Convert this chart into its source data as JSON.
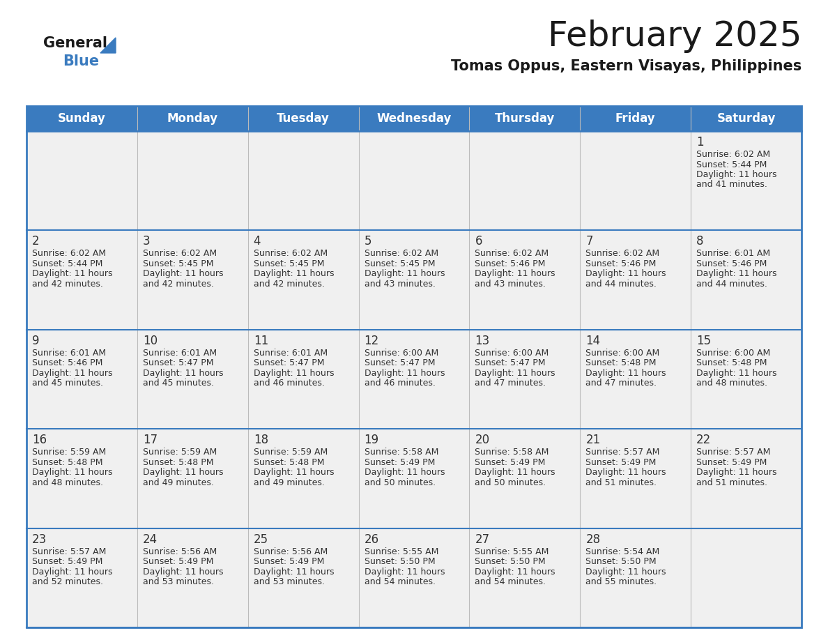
{
  "title": "February 2025",
  "subtitle": "Tomas Oppus, Eastern Visayas, Philippines",
  "header_bg_color": "#3a7bbf",
  "header_text_color": "#ffffff",
  "cell_bg_color": "#f0f0f0",
  "cell_bg_white": "#ffffff",
  "day_number_color": "#333333",
  "text_color": "#333333",
  "border_color": "#3a7bbf",
  "separator_color": "#3a7bbf",
  "days_of_week": [
    "Sunday",
    "Monday",
    "Tuesday",
    "Wednesday",
    "Thursday",
    "Friday",
    "Saturday"
  ],
  "weeks": [
    [
      {
        "day": null,
        "sunrise": null,
        "sunset": null,
        "daylight": null
      },
      {
        "day": null,
        "sunrise": null,
        "sunset": null,
        "daylight": null
      },
      {
        "day": null,
        "sunrise": null,
        "sunset": null,
        "daylight": null
      },
      {
        "day": null,
        "sunrise": null,
        "sunset": null,
        "daylight": null
      },
      {
        "day": null,
        "sunrise": null,
        "sunset": null,
        "daylight": null
      },
      {
        "day": null,
        "sunrise": null,
        "sunset": null,
        "daylight": null
      },
      {
        "day": 1,
        "sunrise": "6:02 AM",
        "sunset": "5:44 PM",
        "daylight": "11 hours and 41 minutes."
      }
    ],
    [
      {
        "day": 2,
        "sunrise": "6:02 AM",
        "sunset": "5:44 PM",
        "daylight": "11 hours and 42 minutes."
      },
      {
        "day": 3,
        "sunrise": "6:02 AM",
        "sunset": "5:45 PM",
        "daylight": "11 hours and 42 minutes."
      },
      {
        "day": 4,
        "sunrise": "6:02 AM",
        "sunset": "5:45 PM",
        "daylight": "11 hours and 42 minutes."
      },
      {
        "day": 5,
        "sunrise": "6:02 AM",
        "sunset": "5:45 PM",
        "daylight": "11 hours and 43 minutes."
      },
      {
        "day": 6,
        "sunrise": "6:02 AM",
        "sunset": "5:46 PM",
        "daylight": "11 hours and 43 minutes."
      },
      {
        "day": 7,
        "sunrise": "6:02 AM",
        "sunset": "5:46 PM",
        "daylight": "11 hours and 44 minutes."
      },
      {
        "day": 8,
        "sunrise": "6:01 AM",
        "sunset": "5:46 PM",
        "daylight": "11 hours and 44 minutes."
      }
    ],
    [
      {
        "day": 9,
        "sunrise": "6:01 AM",
        "sunset": "5:46 PM",
        "daylight": "11 hours and 45 minutes."
      },
      {
        "day": 10,
        "sunrise": "6:01 AM",
        "sunset": "5:47 PM",
        "daylight": "11 hours and 45 minutes."
      },
      {
        "day": 11,
        "sunrise": "6:01 AM",
        "sunset": "5:47 PM",
        "daylight": "11 hours and 46 minutes."
      },
      {
        "day": 12,
        "sunrise": "6:00 AM",
        "sunset": "5:47 PM",
        "daylight": "11 hours and 46 minutes."
      },
      {
        "day": 13,
        "sunrise": "6:00 AM",
        "sunset": "5:47 PM",
        "daylight": "11 hours and 47 minutes."
      },
      {
        "day": 14,
        "sunrise": "6:00 AM",
        "sunset": "5:48 PM",
        "daylight": "11 hours and 47 minutes."
      },
      {
        "day": 15,
        "sunrise": "6:00 AM",
        "sunset": "5:48 PM",
        "daylight": "11 hours and 48 minutes."
      }
    ],
    [
      {
        "day": 16,
        "sunrise": "5:59 AM",
        "sunset": "5:48 PM",
        "daylight": "11 hours and 48 minutes."
      },
      {
        "day": 17,
        "sunrise": "5:59 AM",
        "sunset": "5:48 PM",
        "daylight": "11 hours and 49 minutes."
      },
      {
        "day": 18,
        "sunrise": "5:59 AM",
        "sunset": "5:48 PM",
        "daylight": "11 hours and 49 minutes."
      },
      {
        "day": 19,
        "sunrise": "5:58 AM",
        "sunset": "5:49 PM",
        "daylight": "11 hours and 50 minutes."
      },
      {
        "day": 20,
        "sunrise": "5:58 AM",
        "sunset": "5:49 PM",
        "daylight": "11 hours and 50 minutes."
      },
      {
        "day": 21,
        "sunrise": "5:57 AM",
        "sunset": "5:49 PM",
        "daylight": "11 hours and 51 minutes."
      },
      {
        "day": 22,
        "sunrise": "5:57 AM",
        "sunset": "5:49 PM",
        "daylight": "11 hours and 51 minutes."
      }
    ],
    [
      {
        "day": 23,
        "sunrise": "5:57 AM",
        "sunset": "5:49 PM",
        "daylight": "11 hours and 52 minutes."
      },
      {
        "day": 24,
        "sunrise": "5:56 AM",
        "sunset": "5:49 PM",
        "daylight": "11 hours and 53 minutes."
      },
      {
        "day": 25,
        "sunrise": "5:56 AM",
        "sunset": "5:49 PM",
        "daylight": "11 hours and 53 minutes."
      },
      {
        "day": 26,
        "sunrise": "5:55 AM",
        "sunset": "5:50 PM",
        "daylight": "11 hours and 54 minutes."
      },
      {
        "day": 27,
        "sunrise": "5:55 AM",
        "sunset": "5:50 PM",
        "daylight": "11 hours and 54 minutes."
      },
      {
        "day": 28,
        "sunrise": "5:54 AM",
        "sunset": "5:50 PM",
        "daylight": "11 hours and 55 minutes."
      },
      {
        "day": null,
        "sunrise": null,
        "sunset": null,
        "daylight": null
      }
    ]
  ],
  "logo_text1": "General",
  "logo_text2": "Blue",
  "logo_triangle_color": "#3a7bbf",
  "title_fontsize": 36,
  "subtitle_fontsize": 15,
  "header_fontsize": 12,
  "day_num_fontsize": 12,
  "cell_text_fontsize": 9
}
